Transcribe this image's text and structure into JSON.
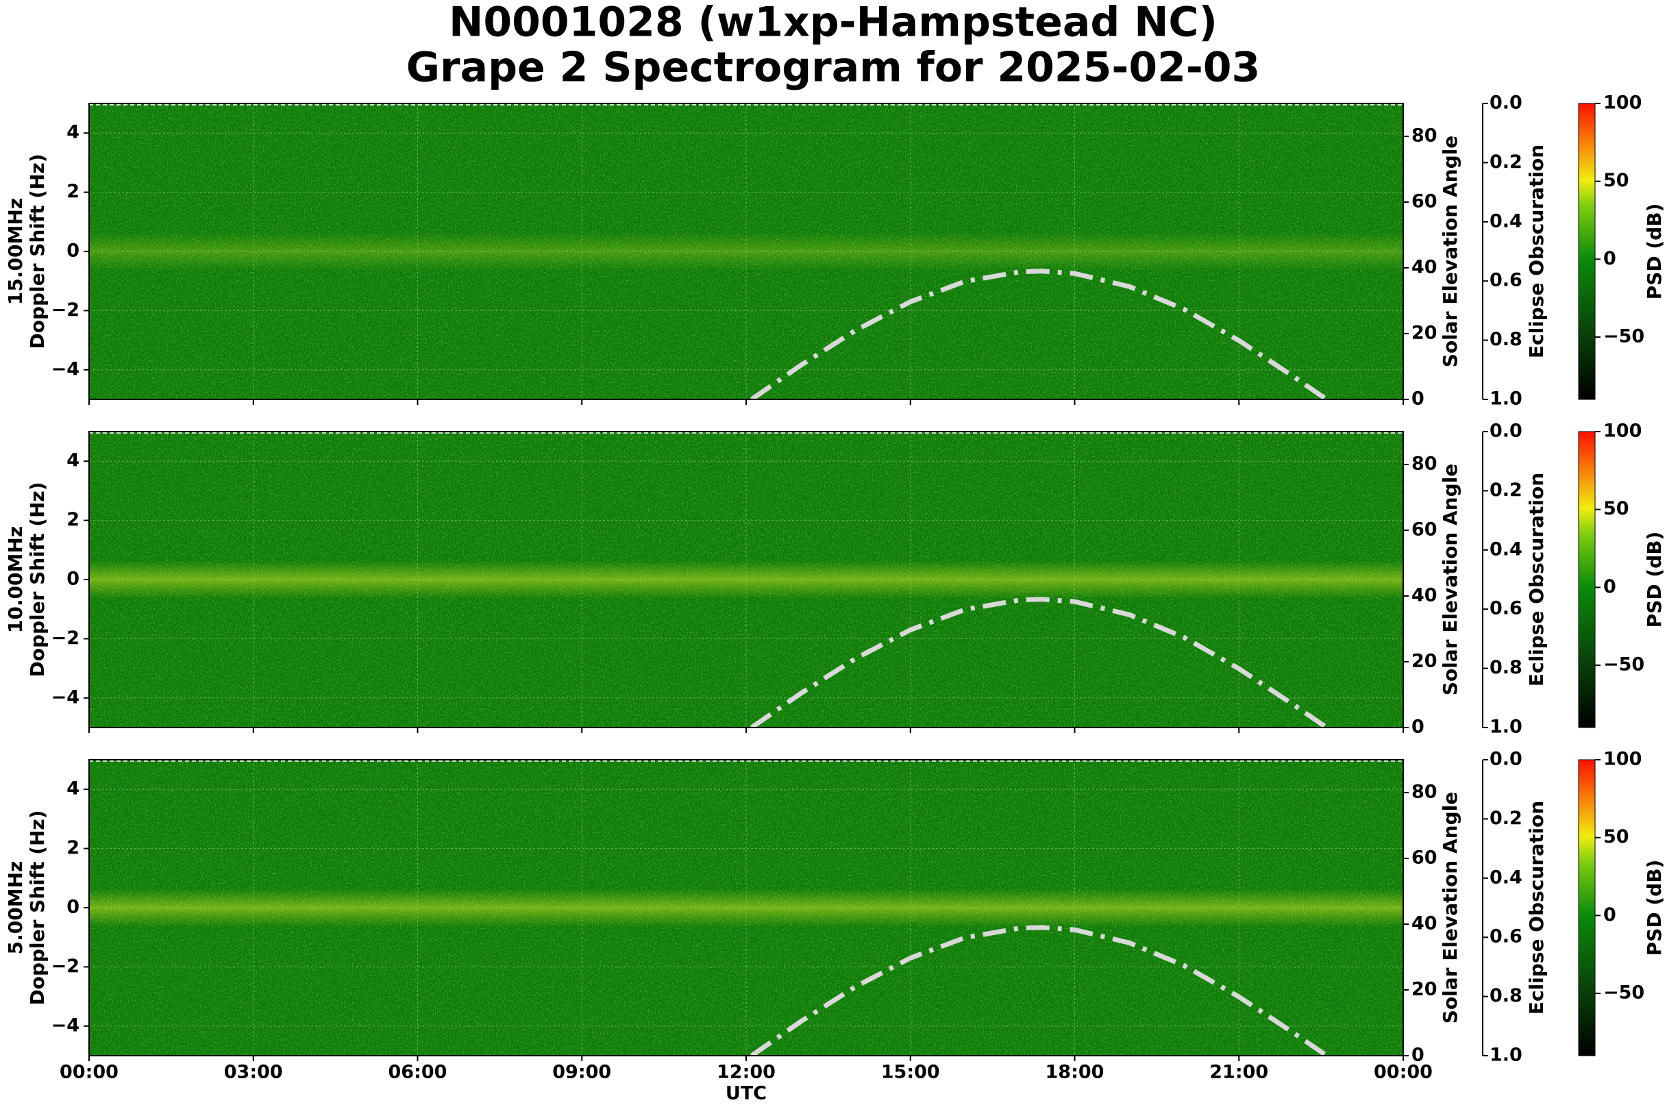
{
  "title": "N0001028 (w1xp-Hampstead NC)",
  "subtitle": "Grape 2 Spectrogram for 2025-02-03",
  "chart_data": [
    {
      "type": "line",
      "band": "15.00MHz",
      "ylabel": "Doppler Shift (Hz)",
      "y2label": "Solar Elevation Angle",
      "xlim": [
        0,
        24
      ],
      "xticks": [
        0,
        3,
        6,
        9,
        12,
        15,
        18,
        21,
        24
      ],
      "grid": true,
      "ylim": [
        -5,
        5
      ],
      "yticks": [
        {
          "value": -4,
          "label": "−4"
        },
        {
          "value": -2,
          "label": "−2"
        },
        0,
        2,
        4
      ],
      "y2lim": [
        0,
        90
      ],
      "y2ticks": [
        0,
        20,
        40,
        60,
        80
      ],
      "x": [
        12.1,
        13,
        14,
        15,
        16,
        17,
        17.4,
        18,
        19,
        20,
        21,
        22,
        22.6
      ],
      "series": [
        {
          "axis": "y2",
          "color": "#d9d9d9",
          "values": [
            0,
            10.4,
            21,
            29.7,
            35.9,
            38.8,
            39,
            38.3,
            34.3,
            27.4,
            17.9,
            6.9,
            0
          ]
        }
      ],
      "eclipse_label": "Eclipse Obscuration",
      "eclipse_lim": [
        0,
        1
      ],
      "eclipse_ticks": [
        {
          "value": 0,
          "label": "0.0"
        },
        {
          "value": 0.2,
          "label": "0.2"
        },
        {
          "value": 0.4,
          "label": "0.4"
        },
        {
          "value": 0.6,
          "label": "0.6"
        },
        {
          "value": 0.8,
          "label": "0.8"
        },
        {
          "value": 1,
          "label": "1.0"
        }
      ],
      "colorbar": {
        "label": "PSD (dB)",
        "lim": [
          -90,
          100
        ],
        "ticks": [
          {
            "value": -50,
            "label": "−50"
          },
          0,
          50,
          100
        ]
      }
    },
    {
      "type": "line",
      "band": "10.00MHz",
      "ylabel": "Doppler Shift (Hz)",
      "y2label": "Solar Elevation Angle",
      "xlim": [
        0,
        24
      ],
      "xticks": [
        0,
        3,
        6,
        9,
        12,
        15,
        18,
        21,
        24
      ],
      "grid": true,
      "ylim": [
        -5,
        5
      ],
      "yticks": [
        {
          "value": -4,
          "label": "−4"
        },
        {
          "value": -2,
          "label": "−2"
        },
        0,
        2,
        4
      ],
      "y2lim": [
        0,
        90
      ],
      "y2ticks": [
        0,
        20,
        40,
        60,
        80
      ],
      "x": [
        12.1,
        13,
        14,
        15,
        16,
        17,
        17.4,
        18,
        19,
        20,
        21,
        22,
        22.6
      ],
      "series": [
        {
          "axis": "y2",
          "color": "#d9d9d9",
          "values": [
            0,
            10.4,
            21,
            29.7,
            35.9,
            38.8,
            39,
            38.3,
            34.3,
            27.4,
            17.9,
            6.9,
            0
          ]
        }
      ],
      "eclipse_label": "Eclipse Obscuration",
      "eclipse_lim": [
        0,
        1
      ],
      "eclipse_ticks": [
        {
          "value": 0,
          "label": "0.0"
        },
        {
          "value": 0.2,
          "label": "0.2"
        },
        {
          "value": 0.4,
          "label": "0.4"
        },
        {
          "value": 0.6,
          "label": "0.6"
        },
        {
          "value": 0.8,
          "label": "0.8"
        },
        {
          "value": 1,
          "label": "1.0"
        }
      ],
      "colorbar": {
        "label": "PSD (dB)",
        "lim": [
          -90,
          100
        ],
        "ticks": [
          {
            "value": -50,
            "label": "−50"
          },
          0,
          50,
          100
        ]
      }
    },
    {
      "type": "line",
      "band": "5.00MHz",
      "ylabel": "Doppler Shift (Hz)",
      "y2label": "Solar Elevation Angle",
      "xlabel": "UTC",
      "xlim": [
        0,
        24
      ],
      "xticks": [
        {
          "value": 0,
          "label": "00:00"
        },
        {
          "value": 3,
          "label": "03:00"
        },
        {
          "value": 6,
          "label": "06:00"
        },
        {
          "value": 9,
          "label": "09:00"
        },
        {
          "value": 12,
          "label": "12:00"
        },
        {
          "value": 15,
          "label": "15:00"
        },
        {
          "value": 18,
          "label": "18:00"
        },
        {
          "value": 21,
          "label": "21:00"
        },
        {
          "value": 24,
          "label": "00:00"
        }
      ],
      "grid": true,
      "ylim": [
        -5,
        5
      ],
      "yticks": [
        {
          "value": -4,
          "label": "−4"
        },
        {
          "value": -2,
          "label": "−2"
        },
        0,
        2,
        4
      ],
      "y2lim": [
        0,
        90
      ],
      "y2ticks": [
        0,
        20,
        40,
        60,
        80
      ],
      "x": [
        12.1,
        13,
        14,
        15,
        16,
        17,
        17.4,
        18,
        19,
        20,
        21,
        22,
        22.6
      ],
      "series": [
        {
          "axis": "y2",
          "color": "#d9d9d9",
          "values": [
            0,
            10.4,
            21,
            29.7,
            35.9,
            38.8,
            39,
            38.3,
            34.3,
            27.4,
            17.9,
            6.9,
            0
          ]
        }
      ],
      "eclipse_label": "Eclipse Obscuration",
      "eclipse_lim": [
        0,
        1
      ],
      "eclipse_ticks": [
        {
          "value": 0,
          "label": "0.0"
        },
        {
          "value": 0.2,
          "label": "0.2"
        },
        {
          "value": 0.4,
          "label": "0.4"
        },
        {
          "value": 0.6,
          "label": "0.6"
        },
        {
          "value": 0.8,
          "label": "0.8"
        },
        {
          "value": 1,
          "label": "1.0"
        }
      ],
      "colorbar": {
        "label": "PSD (dB)",
        "lim": [
          -90,
          100
        ],
        "ticks": [
          {
            "value": -50,
            "label": "−50"
          },
          0,
          50,
          100
        ]
      }
    }
  ]
}
